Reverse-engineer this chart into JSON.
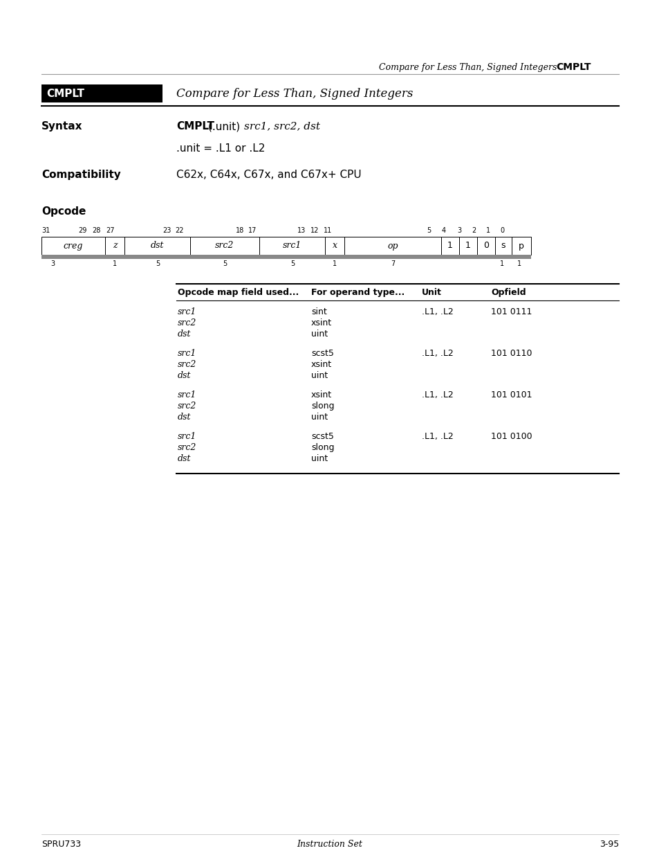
{
  "page_title_italic": "Compare for Less Than, Signed Integers",
  "page_title_bold": "CMPLT",
  "cmplt_box_label": "CMPLT",
  "cmplt_italic_title": "Compare for Less Than, Signed Integers",
  "syntax_label": "Syntax",
  "syntax_bold": "CMPLT",
  "syntax_rest_normal": " (.unit) ",
  "syntax_italic": "src1, src2, dst",
  "syntax_unit": ".unit = .L1 or .L2",
  "compat_label": "Compatibility",
  "compat_text": "C62x, C64x, C67x, and C67x+ CPU",
  "opcode_label": "Opcode",
  "table_headers": [
    "Opcode map field used...",
    "For operand type...",
    "Unit",
    "Opfield"
  ],
  "table_rows": [
    [
      [
        "src1",
        "src2",
        "dst"
      ],
      [
        "sint",
        "xsint",
        "uint"
      ],
      ".L1, .L2",
      "101 0111"
    ],
    [
      [
        "src1",
        "src2",
        "dst"
      ],
      [
        "scst5",
        "xsint",
        "uint"
      ],
      ".L1, .L2",
      "101 0110"
    ],
    [
      [
        "src1",
        "src2",
        "dst"
      ],
      [
        "xsint",
        "slong",
        "uint"
      ],
      ".L1, .L2",
      "101 0101"
    ],
    [
      [
        "src1",
        "src2",
        "dst"
      ],
      [
        "scst5",
        "slong",
        "uint"
      ],
      ".L1, .L2",
      "101 0100"
    ]
  ],
  "footer_left": "SPRU733",
  "footer_center": "Instruction Set",
  "footer_right": "3-95",
  "bg_color": "#ffffff",
  "text_color": "#000000",
  "box_bg": "#000000",
  "box_text": "#ffffff",
  "cells": [
    [
      "creg",
      60,
      92,
      true
    ],
    [
      "z",
      152,
      28,
      true
    ],
    [
      "dst",
      180,
      95,
      true
    ],
    [
      "src2",
      275,
      100,
      true
    ],
    [
      "src1",
      375,
      95,
      true
    ],
    [
      "x",
      470,
      28,
      true
    ],
    [
      "op",
      498,
      140,
      true
    ],
    [
      "1",
      638,
      26,
      false
    ],
    [
      "1",
      664,
      26,
      false
    ],
    [
      "0",
      690,
      26,
      false
    ],
    [
      "s",
      716,
      24,
      false
    ],
    [
      "p",
      740,
      28,
      false
    ]
  ],
  "bit_top": [
    [
      60,
      "31"
    ],
    [
      113,
      "29"
    ],
    [
      133,
      "28"
    ],
    [
      153,
      "27"
    ],
    [
      235,
      "23"
    ],
    [
      253,
      "22"
    ],
    [
      341,
      "18"
    ],
    [
      359,
      "17"
    ],
    [
      430,
      "13"
    ],
    [
      449,
      "12"
    ],
    [
      468,
      "11"
    ],
    [
      617,
      "5"
    ],
    [
      639,
      "4"
    ],
    [
      661,
      "3"
    ],
    [
      682,
      "2"
    ],
    [
      703,
      "1"
    ],
    [
      723,
      "0"
    ]
  ],
  "bit_bot": [
    [
      76,
      "3"
    ],
    [
      166,
      "1"
    ],
    [
      228,
      "5"
    ],
    [
      325,
      "5"
    ],
    [
      423,
      "5"
    ],
    [
      484,
      "1"
    ],
    [
      568,
      "7"
    ],
    [
      726,
      "1"
    ],
    [
      751,
      "1"
    ]
  ]
}
